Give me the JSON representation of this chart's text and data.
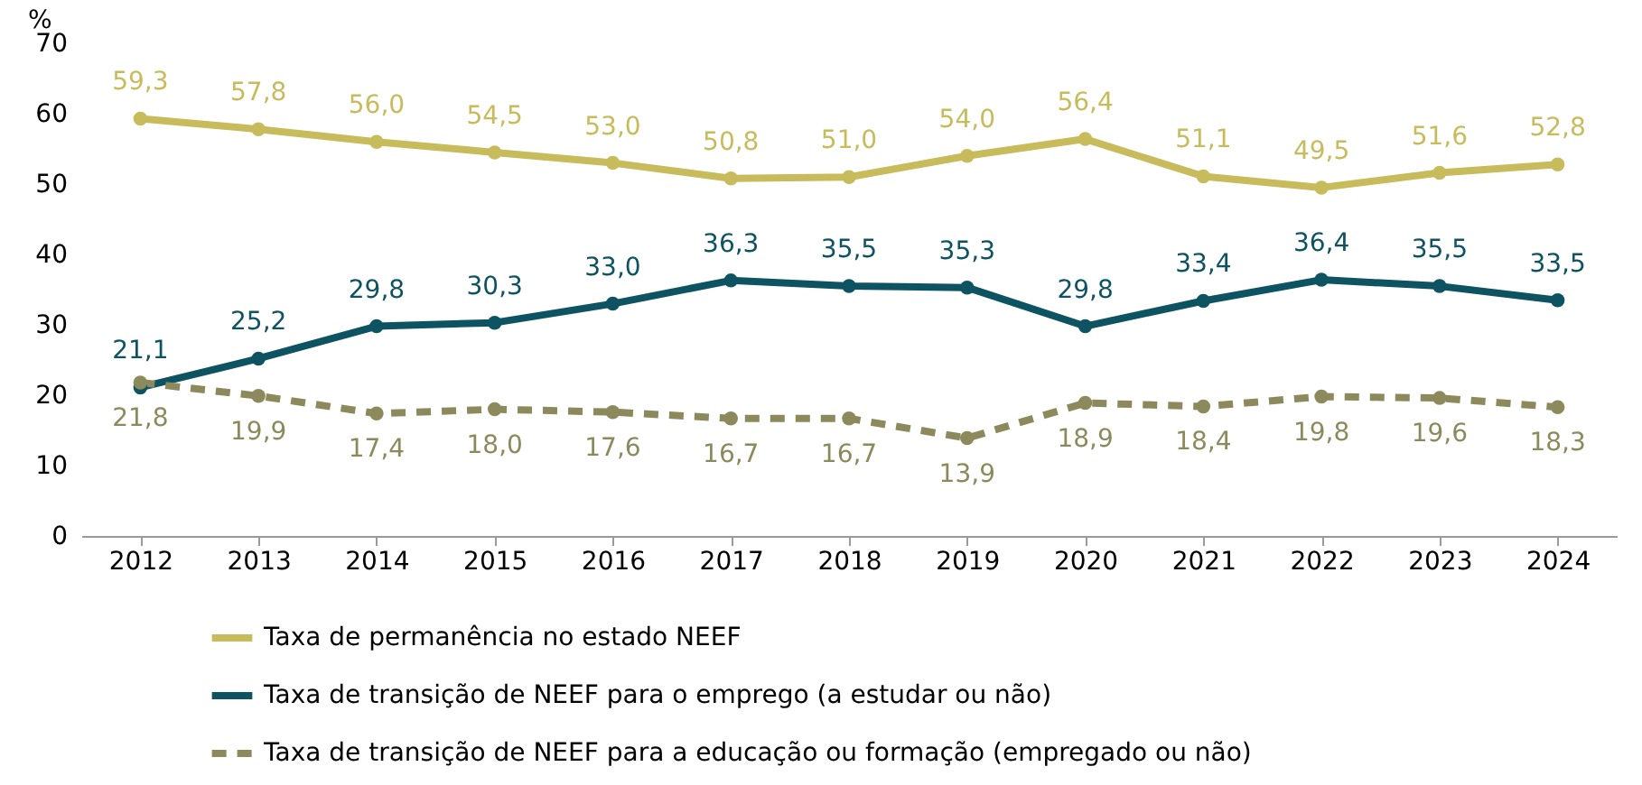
{
  "chart_data": {
    "type": "line",
    "ylabel": "%",
    "categories": [
      "2012",
      "2013",
      "2014",
      "2015",
      "2016",
      "2017",
      "2018",
      "2019",
      "2020",
      "2021",
      "2022",
      "2023",
      "2024"
    ],
    "series": [
      {
        "name": "Taxa de permanência no estado NEEF",
        "color": "#c8bb5c",
        "line_style": "solid",
        "values": [
          59.3,
          57.8,
          56.0,
          54.5,
          53.0,
          50.8,
          51.0,
          54.0,
          56.4,
          51.1,
          49.5,
          51.6,
          52.8
        ],
        "value_labels": [
          "59,3",
          "57,8",
          "56,0",
          "54,5",
          "53,0",
          "50,8",
          "51,0",
          "54,0",
          "56,4",
          "51,1",
          "49,5",
          "51,6",
          "52,8"
        ]
      },
      {
        "name": "Taxa de transição de NEEF para o emprego (a estudar ou não)",
        "color": "#0e5361",
        "line_style": "solid",
        "values": [
          21.1,
          25.2,
          29.8,
          30.3,
          33.0,
          36.3,
          35.5,
          35.3,
          29.8,
          33.4,
          36.4,
          35.5,
          33.5
        ],
        "value_labels": [
          "21,1",
          "25,2",
          "29,8",
          "30,3",
          "33,0",
          "36,3",
          "35,5",
          "35,3",
          "29,8",
          "33,4",
          "36,4",
          "35,5",
          "33,5"
        ]
      },
      {
        "name": "Taxa de transição de NEEF para a educação ou formação (empregado ou não)",
        "color": "#8c8a5c",
        "line_style": "dashed",
        "values": [
          21.8,
          19.9,
          17.4,
          18.0,
          17.6,
          16.7,
          16.7,
          13.9,
          18.9,
          18.4,
          19.8,
          19.6,
          18.3
        ],
        "value_labels": [
          "21,8",
          "19,9",
          "17,4",
          "18,0",
          "17,6",
          "16,7",
          "16,7",
          "13,9",
          "18,9",
          "18,4",
          "19,8",
          "19,6",
          "18,3"
        ]
      }
    ],
    "ylim": [
      0,
      70
    ],
    "yticks": [
      0,
      10,
      20,
      30,
      40,
      50,
      60,
      70
    ],
    "grid": false,
    "legend": "bottom",
    "marker": "circle"
  }
}
